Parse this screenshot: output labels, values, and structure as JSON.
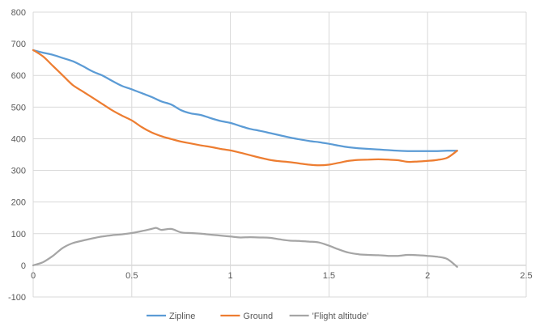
{
  "chart_data": {
    "type": "line",
    "title": "",
    "xlabel": "",
    "ylabel": "",
    "xlim": [
      0,
      2.5
    ],
    "ylim": [
      -100,
      800
    ],
    "x_ticks": [
      0,
      0.5,
      1,
      1.5,
      2,
      2.5
    ],
    "x_tick_labels": [
      "0",
      "0.5",
      "1",
      "1.5",
      "2",
      "2.5"
    ],
    "y_ticks": [
      -100,
      0,
      100,
      200,
      300,
      400,
      500,
      600,
      700,
      800
    ],
    "y_tick_labels": [
      "-100",
      "0",
      "100",
      "200",
      "300",
      "400",
      "500",
      "600",
      "700",
      "800"
    ],
    "grid": "vertical and horizontal major gridlines",
    "legend_position": "bottom",
    "series": [
      {
        "name": "Zipline",
        "color": "#5B9BD5",
        "points": [
          [
            0,
            680
          ],
          [
            0.05,
            672
          ],
          [
            0.1,
            665
          ],
          [
            0.15,
            655
          ],
          [
            0.2,
            645
          ],
          [
            0.25,
            630
          ],
          [
            0.3,
            613
          ],
          [
            0.35,
            600
          ],
          [
            0.4,
            583
          ],
          [
            0.45,
            567
          ],
          [
            0.5,
            556
          ],
          [
            0.55,
            544
          ],
          [
            0.6,
            532
          ],
          [
            0.65,
            518
          ],
          [
            0.7,
            508
          ],
          [
            0.75,
            490
          ],
          [
            0.8,
            480
          ],
          [
            0.85,
            475
          ],
          [
            0.9,
            465
          ],
          [
            0.95,
            456
          ],
          [
            1.0,
            450
          ],
          [
            1.05,
            440
          ],
          [
            1.1,
            431
          ],
          [
            1.15,
            425
          ],
          [
            1.2,
            418
          ],
          [
            1.25,
            411
          ],
          [
            1.3,
            404
          ],
          [
            1.35,
            398
          ],
          [
            1.4,
            393
          ],
          [
            1.45,
            389
          ],
          [
            1.5,
            384
          ],
          [
            1.55,
            378
          ],
          [
            1.6,
            373
          ],
          [
            1.65,
            370
          ],
          [
            1.7,
            368
          ],
          [
            1.75,
            366
          ],
          [
            1.8,
            364
          ],
          [
            1.85,
            362
          ],
          [
            1.9,
            361
          ],
          [
            1.95,
            361
          ],
          [
            2.0,
            361
          ],
          [
            2.05,
            361
          ],
          [
            2.1,
            362
          ],
          [
            2.15,
            362
          ]
        ]
      },
      {
        "name": "Ground",
        "color": "#ED7D31",
        "points": [
          [
            0,
            680
          ],
          [
            0.05,
            660
          ],
          [
            0.1,
            630
          ],
          [
            0.15,
            600
          ],
          [
            0.2,
            570
          ],
          [
            0.25,
            550
          ],
          [
            0.3,
            530
          ],
          [
            0.35,
            510
          ],
          [
            0.4,
            490
          ],
          [
            0.45,
            473
          ],
          [
            0.5,
            458
          ],
          [
            0.55,
            437
          ],
          [
            0.6,
            420
          ],
          [
            0.65,
            408
          ],
          [
            0.7,
            399
          ],
          [
            0.75,
            391
          ],
          [
            0.8,
            385
          ],
          [
            0.85,
            379
          ],
          [
            0.9,
            374
          ],
          [
            0.95,
            368
          ],
          [
            1.0,
            363
          ],
          [
            1.05,
            356
          ],
          [
            1.1,
            348
          ],
          [
            1.15,
            340
          ],
          [
            1.2,
            333
          ],
          [
            1.25,
            329
          ],
          [
            1.3,
            326
          ],
          [
            1.35,
            322
          ],
          [
            1.4,
            318
          ],
          [
            1.45,
            316
          ],
          [
            1.5,
            318
          ],
          [
            1.55,
            324
          ],
          [
            1.6,
            330
          ],
          [
            1.65,
            333
          ],
          [
            1.7,
            334
          ],
          [
            1.75,
            335
          ],
          [
            1.8,
            334
          ],
          [
            1.85,
            332
          ],
          [
            1.9,
            327
          ],
          [
            1.95,
            328
          ],
          [
            2.0,
            330
          ],
          [
            2.05,
            333
          ],
          [
            2.1,
            340
          ],
          [
            2.15,
            362
          ]
        ]
      },
      {
        "name": "'Flight altitude'",
        "color": "#A5A5A5",
        "points": [
          [
            0,
            0
          ],
          [
            0.05,
            10
          ],
          [
            0.1,
            30
          ],
          [
            0.15,
            55
          ],
          [
            0.2,
            70
          ],
          [
            0.25,
            78
          ],
          [
            0.3,
            85
          ],
          [
            0.35,
            91
          ],
          [
            0.4,
            95
          ],
          [
            0.45,
            98
          ],
          [
            0.5,
            102
          ],
          [
            0.55,
            108
          ],
          [
            0.6,
            115
          ],
          [
            0.625,
            118
          ],
          [
            0.65,
            112
          ],
          [
            0.7,
            115
          ],
          [
            0.75,
            104
          ],
          [
            0.8,
            102
          ],
          [
            0.85,
            100
          ],
          [
            0.9,
            97
          ],
          [
            0.95,
            94
          ],
          [
            1.0,
            91
          ],
          [
            1.05,
            88
          ],
          [
            1.1,
            89
          ],
          [
            1.15,
            88
          ],
          [
            1.2,
            87
          ],
          [
            1.25,
            82
          ],
          [
            1.3,
            78
          ],
          [
            1.35,
            77
          ],
          [
            1.4,
            75
          ],
          [
            1.45,
            72
          ],
          [
            1.5,
            62
          ],
          [
            1.55,
            50
          ],
          [
            1.6,
            40
          ],
          [
            1.65,
            35
          ],
          [
            1.7,
            33
          ],
          [
            1.75,
            32
          ],
          [
            1.8,
            30
          ],
          [
            1.85,
            30
          ],
          [
            1.9,
            33
          ],
          [
            1.95,
            32
          ],
          [
            2.0,
            30
          ],
          [
            2.05,
            27
          ],
          [
            2.1,
            20
          ],
          [
            2.15,
            -5
          ]
        ]
      }
    ]
  }
}
